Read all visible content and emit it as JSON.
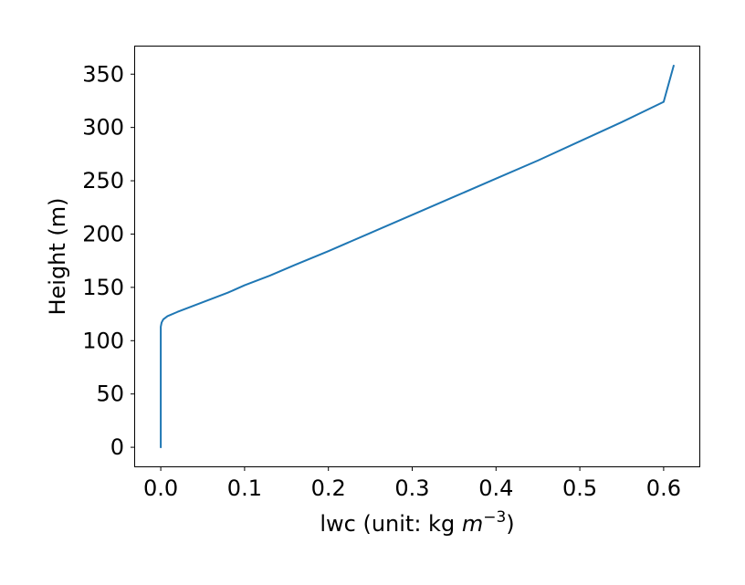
{
  "chart_data": {
    "type": "line",
    "xlabel": {
      "main": "lwc (unit: kg ",
      "math_base": "m",
      "math_sup": "−3",
      "close": ")"
    },
    "ylabel": "Height (m)",
    "xlim": [
      -0.0306,
      0.6426
    ],
    "ylim": [
      -17.9,
      375.9
    ],
    "x_ticks": [
      0.0,
      0.1,
      0.2,
      0.3,
      0.4,
      0.5,
      0.6
    ],
    "x_tick_labels": [
      "0.0",
      "0.1",
      "0.2",
      "0.3",
      "0.4",
      "0.5",
      "0.6"
    ],
    "y_ticks": [
      0,
      50,
      100,
      150,
      200,
      250,
      300,
      350
    ],
    "y_tick_labels": [
      "0",
      "50",
      "100",
      "150",
      "200",
      "250",
      "300",
      "350"
    ],
    "grid": false,
    "series": [
      {
        "color": "#1f77b4",
        "points": [
          [
            0.0,
            0
          ],
          [
            0.0,
            50
          ],
          [
            0.0,
            100
          ],
          [
            0.0,
            113
          ],
          [
            0.001,
            117
          ],
          [
            0.003,
            120
          ],
          [
            0.008,
            123
          ],
          [
            0.02,
            127
          ],
          [
            0.04,
            133
          ],
          [
            0.06,
            139
          ],
          [
            0.08,
            145
          ],
          [
            0.1,
            152
          ],
          [
            0.13,
            161
          ],
          [
            0.16,
            171
          ],
          [
            0.2,
            184
          ],
          [
            0.25,
            201
          ],
          [
            0.3,
            218
          ],
          [
            0.35,
            235
          ],
          [
            0.4,
            252
          ],
          [
            0.45,
            269
          ],
          [
            0.5,
            287
          ],
          [
            0.55,
            305
          ],
          [
            0.6,
            324
          ],
          [
            0.612,
            358
          ]
        ]
      }
    ]
  }
}
